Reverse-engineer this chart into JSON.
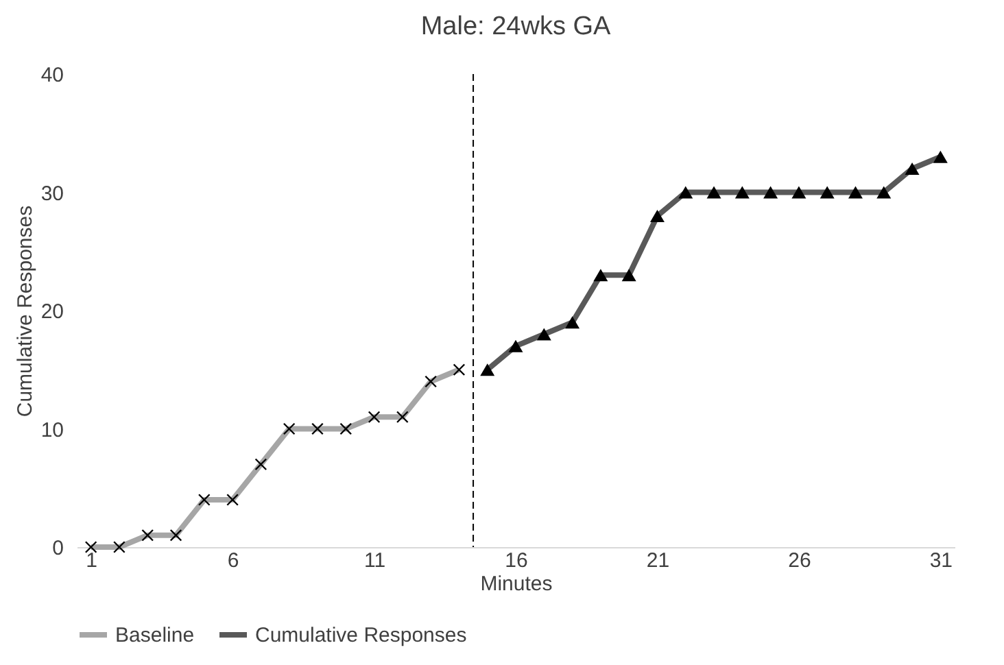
{
  "chart_data": {
    "type": "line",
    "title": "Male: 24wks GA",
    "xlabel": "Minutes",
    "ylabel": "Cumulative Responses",
    "xlim": [
      0.5,
      31.5
    ],
    "xticks": [
      1,
      6,
      11,
      16,
      21,
      26,
      31
    ],
    "ylim": [
      0,
      40
    ],
    "yticks": [
      0,
      10,
      20,
      30,
      40
    ],
    "grid": false,
    "legend": "bottom",
    "line_style": "solid",
    "series": [
      {
        "name": "Baseline",
        "color": "#a6a6a6",
        "marker": "cross",
        "x": [
          1,
          2,
          3,
          4,
          5,
          6,
          7,
          8,
          9,
          10,
          11,
          12,
          13,
          14
        ],
        "values": [
          0,
          0,
          1,
          1,
          4,
          4,
          7,
          10,
          10,
          10,
          11,
          11,
          14,
          15
        ]
      },
      {
        "name": "Cumulative Responses",
        "color": "#595959",
        "marker": "triangle",
        "x": [
          15,
          16,
          17,
          18,
          19,
          20,
          21,
          22,
          23,
          24,
          25,
          26,
          27,
          28,
          29,
          30,
          31
        ],
        "values": [
          15,
          17,
          18,
          19,
          23,
          23,
          28,
          30,
          30,
          30,
          30,
          30,
          30,
          30,
          30,
          32,
          33
        ]
      }
    ],
    "ref_lines": [
      {
        "axis": "x",
        "value": 14.5,
        "line_style": "dashed",
        "color": "#000000"
      }
    ]
  }
}
